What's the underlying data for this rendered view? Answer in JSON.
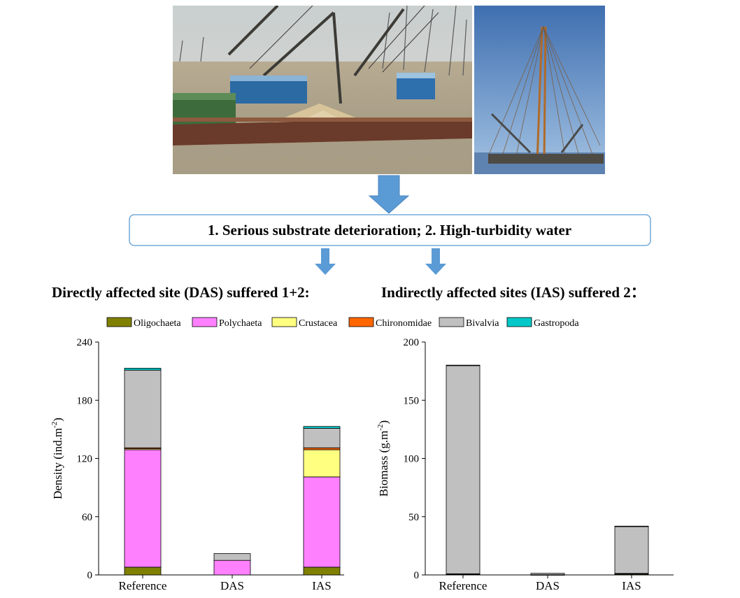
{
  "photos": {
    "left": {
      "name": "sand-dredging-barges-photo"
    },
    "right": {
      "name": "dredging-derrick-photo"
    }
  },
  "headline": {
    "text": "1. Serious substrate deterioration;  2. High-turbidity water"
  },
  "subheadings": {
    "left": "Directly affected site (DAS) suffered 1+2:",
    "right": "Indirectly affected sites (IAS) suffered 2："
  },
  "colors": {
    "Oligochaeta": "#808000",
    "Polychaeta": "#ff80ff",
    "Crustacea": "#ffff80",
    "Chironomidae": "#ff6600",
    "Bivalvia": "#c0c0c0",
    "Gastropoda": "#00c8c8",
    "arrow": "#5b9bd5",
    "box_border": "#5b9bd5"
  },
  "chart_data": [
    {
      "type": "bar",
      "stacked": true,
      "categories": [
        "Reference",
        "DAS",
        "IAS"
      ],
      "ylabel": "Density (ind.m",
      "ylabel_sup": "-2",
      "ylabel_close": ")",
      "ylim": [
        0,
        240
      ],
      "yticks": [
        0,
        60,
        120,
        180,
        240
      ],
      "series": [
        {
          "name": "Oligochaeta",
          "values": [
            8,
            0,
            8
          ]
        },
        {
          "name": "Polychaeta",
          "values": [
            121,
            15,
            93
          ]
        },
        {
          "name": "Crustacea",
          "values": [
            1,
            0,
            28
          ]
        },
        {
          "name": "Chironomidae",
          "values": [
            1,
            0,
            2
          ]
        },
        {
          "name": "Bivalvia",
          "values": [
            80,
            7,
            20
          ]
        },
        {
          "name": "Gastropoda",
          "values": [
            2,
            0,
            2
          ]
        }
      ]
    },
    {
      "type": "bar",
      "stacked": true,
      "categories": [
        "Reference",
        "DAS",
        "IAS"
      ],
      "ylabel": "Biomass (g.m",
      "ylabel_sup": "-2",
      "ylabel_close": ")",
      "ylim": [
        0,
        200
      ],
      "yticks": [
        0,
        50,
        100,
        150,
        200
      ],
      "series": [
        {
          "name": "Oligochaeta",
          "values": [
            0.5,
            0,
            0.8
          ]
        },
        {
          "name": "Polychaeta",
          "values": [
            0.5,
            0.2,
            0.3
          ]
        },
        {
          "name": "Crustacea",
          "values": [
            0,
            0,
            0.1
          ]
        },
        {
          "name": "Chironomidae",
          "values": [
            0,
            0,
            0.1
          ]
        },
        {
          "name": "Bivalvia",
          "values": [
            179,
            1.2,
            40.5
          ]
        },
        {
          "name": "Gastropoda",
          "values": [
            0.1,
            0,
            0.1
          ]
        }
      ]
    }
  ]
}
